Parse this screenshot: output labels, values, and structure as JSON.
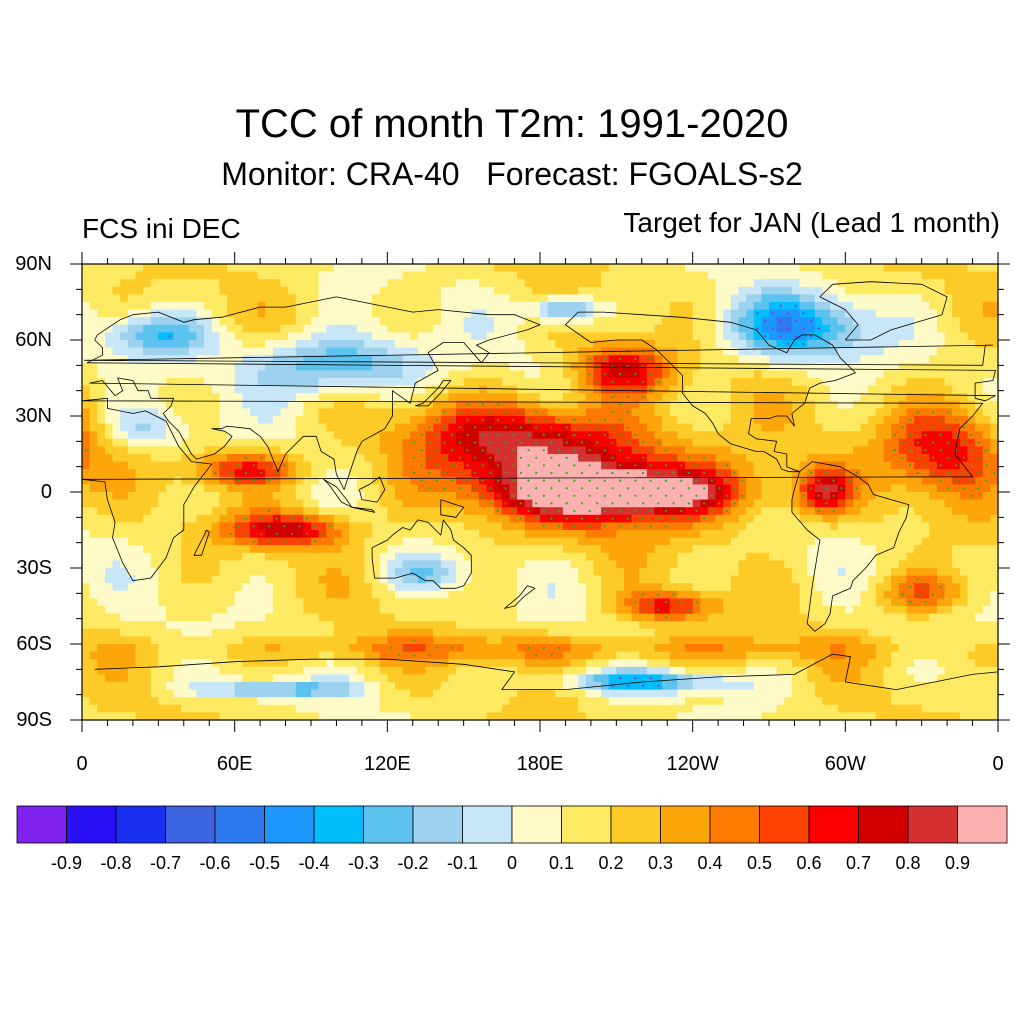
{
  "title": "TCC of month T2m: 1991-2020",
  "subtitle": "Monitor: CRA-40   Forecast: FGOALS-s2",
  "left_label": "FCS ini DEC",
  "right_label": "Target for JAN (Lead 1 month)",
  "map": {
    "projection": "cylindrical-equidistant",
    "lat_range": [
      -90,
      90
    ],
    "lon_range": [
      0,
      360
    ],
    "lat_ticks": [
      {
        "value": 90,
        "label": "90N"
      },
      {
        "value": 60,
        "label": "60N"
      },
      {
        "value": 30,
        "label": "30N"
      },
      {
        "value": 0,
        "label": "0"
      },
      {
        "value": -30,
        "label": "30S"
      },
      {
        "value": -60,
        "label": "60S"
      },
      {
        "value": -90,
        "label": "90S"
      }
    ],
    "lon_ticks": [
      {
        "value": 0,
        "label": "0"
      },
      {
        "value": 60,
        "label": "60E"
      },
      {
        "value": 120,
        "label": "120E"
      },
      {
        "value": 180,
        "label": "180E"
      },
      {
        "value": 240,
        "label": "120W"
      },
      {
        "value": 300,
        "label": "60W"
      },
      {
        "value": 360,
        "label": "0"
      }
    ],
    "background_value": 0.15,
    "anomaly_regions": [
      {
        "name": "equatorial-east-pacific",
        "lon": 212,
        "lat": 0,
        "rlon": 42,
        "rlat": 9,
        "value": 0.93
      },
      {
        "name": "tropical-pacific",
        "lon": 205,
        "lat": 2,
        "rlon": 75,
        "rlat": 20,
        "value": 0.75
      },
      {
        "name": "north-pacific-subtropics",
        "lon": 175,
        "lat": 22,
        "rlon": 55,
        "rlat": 17,
        "value": 0.7
      },
      {
        "name": "northeast-pacific",
        "lon": 212,
        "lat": 48,
        "rlon": 22,
        "rlat": 12,
        "value": 0.72
      },
      {
        "name": "southern-indian-ocean",
        "lon": 80,
        "lat": -15,
        "rlon": 28,
        "rlat": 8,
        "value": 0.72
      },
      {
        "name": "north-indian-ocean",
        "lon": 65,
        "lat": 9,
        "rlon": 25,
        "rlat": 8,
        "value": 0.62
      },
      {
        "name": "tropical-atlantic",
        "lon": 340,
        "lat": 18,
        "rlon": 28,
        "rlat": 22,
        "value": 0.68
      },
      {
        "name": "caribbean",
        "lon": 292,
        "lat": 0,
        "rlon": 12,
        "rlat": 10,
        "value": 0.7
      },
      {
        "name": "south-pacific-mid",
        "lon": 230,
        "lat": -45,
        "rlon": 22,
        "rlat": 7,
        "value": 0.62
      },
      {
        "name": "south-atlantic",
        "lon": 330,
        "lat": -40,
        "rlon": 22,
        "rlat": 10,
        "value": 0.5
      },
      {
        "name": "southern-ocean-band",
        "lon": 180,
        "lat": -62,
        "rlon": 170,
        "rlat": 7,
        "value": 0.4
      },
      {
        "name": "siberia",
        "lon": 100,
        "lat": 50,
        "rlon": 40,
        "rlat": 14,
        "value": -0.35
      },
      {
        "name": "canada-greenland",
        "lon": 280,
        "lat": 65,
        "rlon": 35,
        "rlat": 15,
        "value": -0.4
      },
      {
        "name": "europe-north",
        "lon": 30,
        "lat": 62,
        "rlon": 25,
        "rlat": 10,
        "value": -0.25
      },
      {
        "name": "antarctica-west",
        "lon": 220,
        "lat": -75,
        "rlon": 40,
        "rlat": 5,
        "value": -0.3
      },
      {
        "name": "north-africa",
        "lon": 25,
        "lat": 25,
        "rlon": 18,
        "rlat": 10,
        "value": -0.12
      },
      {
        "name": "australia-south",
        "lon": 135,
        "lat": -32,
        "rlon": 18,
        "rlat": 8,
        "value": -0.15
      },
      {
        "name": "antarctica-east",
        "lon": 75,
        "lat": -78,
        "rlon": 35,
        "rlat": 4,
        "value": -0.25
      },
      {
        "name": "chukchi-sea",
        "lon": 190,
        "lat": 72,
        "rlon": 15,
        "rlat": 6,
        "value": -0.35
      }
    ],
    "significance_marker_color": "#22b022",
    "coastline_color": "#000000"
  },
  "colorbar": {
    "colors": [
      "#7f22ee",
      "#2a10f5",
      "#1a30f0",
      "#3c64de",
      "#2d7aee",
      "#1c96fa",
      "#00befa",
      "#5cc3f0",
      "#9dd2ef",
      "#c7e6f7",
      "#fffbc8",
      "#fee962",
      "#fccb28",
      "#fda60b",
      "#fd7a03",
      "#fd4103",
      "#fc0000",
      "#d10000",
      "#d53030",
      "#fdb0b0"
    ],
    "labels": [
      "-0.9",
      "-0.8",
      "-0.7",
      "-0.6",
      "-0.5",
      "-0.4",
      "-0.3",
      "-0.2",
      "-0.1",
      "0",
      "0.1",
      "0.2",
      "0.3",
      "0.4",
      "0.5",
      "0.6",
      "0.7",
      "0.8",
      "0.9"
    ],
    "levels": [
      -0.9,
      -0.8,
      -0.7,
      -0.6,
      -0.5,
      -0.4,
      -0.3,
      -0.2,
      -0.1,
      0,
      0.1,
      0.2,
      0.3,
      0.4,
      0.5,
      0.6,
      0.7,
      0.8,
      0.9
    ]
  }
}
